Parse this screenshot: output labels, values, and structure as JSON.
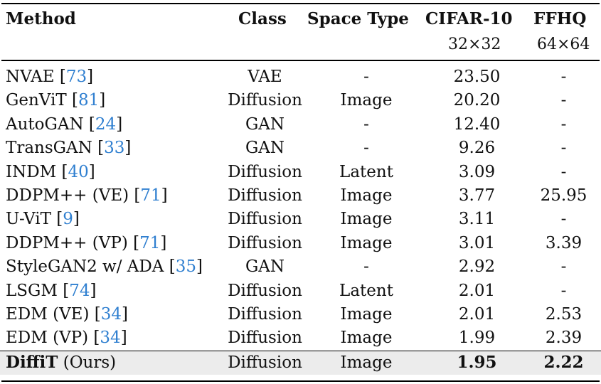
{
  "headers": {
    "method": "Method",
    "class": "Class",
    "space_type": "Space Type",
    "cifar": "CIFAR-10",
    "ffhq": "FFHQ",
    "cifar_res": "32×32",
    "ffhq_res": "64×64"
  },
  "rows": [
    {
      "method": "NVAE [",
      "cite": "73",
      "close": "]",
      "class": "VAE",
      "space": "-",
      "cifar": "23.50",
      "ffhq": "-"
    },
    {
      "method": "GenViT [",
      "cite": "81",
      "close": "]",
      "class": "Diffusion",
      "space": "Image",
      "cifar": "20.20",
      "ffhq": "-"
    },
    {
      "method": "AutoGAN [",
      "cite": "24",
      "close": "]",
      "class": "GAN",
      "space": "-",
      "cifar": "12.40",
      "ffhq": "-"
    },
    {
      "method": "TransGAN [",
      "cite": "33",
      "close": "]",
      "class": "GAN",
      "space": "-",
      "cifar": "9.26",
      "ffhq": "-"
    },
    {
      "method": "INDM [",
      "cite": "40",
      "close": "]",
      "class": "Diffusion",
      "space": "Latent",
      "cifar": "3.09",
      "ffhq": "-"
    },
    {
      "method": "DDPM++ (VE) [",
      "cite": "71",
      "close": "]",
      "class": "Diffusion",
      "space": "Image",
      "cifar": "3.77",
      "ffhq": "25.95"
    },
    {
      "method": "U-ViT [",
      "cite": "9",
      "close": "]",
      "class": "Diffusion",
      "space": "Image",
      "cifar": "3.11",
      "ffhq": "-"
    },
    {
      "method": "DDPM++ (VP) [",
      "cite": "71",
      "close": "]",
      "class": "Diffusion",
      "space": "Image",
      "cifar": "3.01",
      "ffhq": "3.39"
    },
    {
      "method": "StyleGAN2 w/ ADA [",
      "cite": "35",
      "close": "]",
      "class": "GAN",
      "space": "-",
      "cifar": "2.92",
      "ffhq": "-"
    },
    {
      "method": "LSGM [",
      "cite": "74",
      "close": "]",
      "class": "Diffusion",
      "space": "Latent",
      "cifar": "2.01",
      "ffhq": "-"
    },
    {
      "method": "EDM (VE) [",
      "cite": "34",
      "close": "]",
      "class": "Diffusion",
      "space": "Image",
      "cifar": "2.01",
      "ffhq": "2.53"
    },
    {
      "method": "EDM (VP) [",
      "cite": "34",
      "close": "]",
      "class": "Diffusion",
      "space": "Image",
      "cifar": "1.99",
      "ffhq": "2.39"
    }
  ],
  "ours": {
    "name": "DiffiT",
    "suffix": " (Ours)",
    "class": "Diffusion",
    "space": "Image",
    "cifar": "1.95",
    "ffhq": "2.22"
  },
  "colors": {
    "citation": "#2f7fd0",
    "highlight_bg": "#ececec"
  }
}
